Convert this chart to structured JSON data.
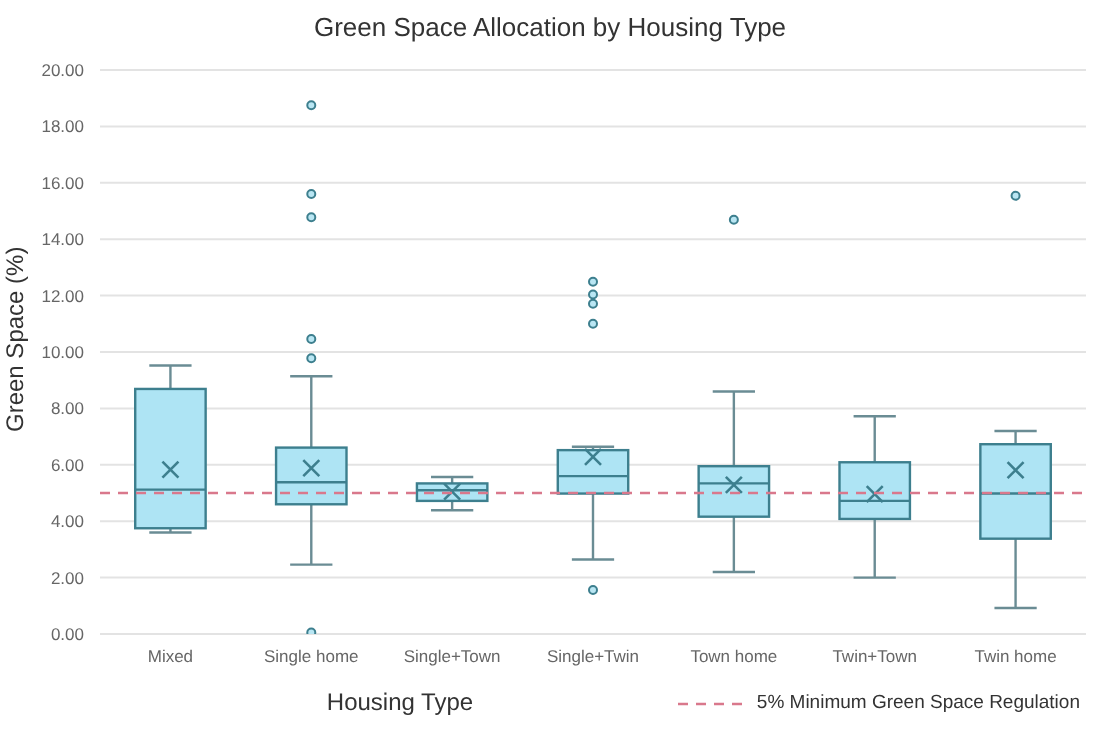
{
  "chart_data": {
    "type": "box",
    "title": "Green Space Allocation by Housing Type",
    "xlabel": "Housing Type",
    "ylabel": "Green Space (%)",
    "categories": [
      "Mixed",
      "Single home",
      "Single+Town",
      "Single+Twin",
      "Town home",
      "Twin+Town",
      "Twin home"
    ],
    "color": "#aee4f4",
    "boxes": [
      {
        "low": 3.6,
        "q1": 3.75,
        "median": 5.12,
        "q3": 8.69,
        "high": 9.52,
        "mean": 5.83
      },
      {
        "low": 2.46,
        "q1": 4.6,
        "median": 5.38,
        "q3": 6.61,
        "high": 9.14,
        "mean": 5.88,
        "outliers": [
          18.75,
          15.6,
          14.78,
          10.46,
          9.78,
          0.05
        ]
      },
      {
        "low": 4.39,
        "q1": 4.72,
        "median": 5.1,
        "q3": 5.34,
        "high": 5.57,
        "mean": 5.05
      },
      {
        "low": 2.64,
        "q1": 4.98,
        "median": 5.6,
        "q3": 6.52,
        "high": 6.64,
        "mean": 6.28,
        "outliers": [
          12.49,
          12.04,
          11.71,
          11.0,
          1.56
        ]
      },
      {
        "low": 2.2,
        "q1": 4.16,
        "median": 5.34,
        "q3": 5.95,
        "high": 8.6,
        "mean": 5.29,
        "outliers": [
          14.69
        ]
      },
      {
        "low": 2.0,
        "q1": 4.08,
        "median": 4.72,
        "q3": 6.09,
        "high": 7.72,
        "mean": 4.96
      },
      {
        "low": 0.92,
        "q1": 3.38,
        "median": 4.98,
        "q3": 6.73,
        "high": 7.2,
        "mean": 5.81,
        "outliers": [
          15.54
        ]
      }
    ],
    "ylim": [
      0,
      20
    ],
    "yticks": [
      {
        "value": 0,
        "label": "0.00"
      },
      {
        "value": 2,
        "label": "2.00"
      },
      {
        "value": 4,
        "label": "4.00"
      },
      {
        "value": 6,
        "label": "6.00"
      },
      {
        "value": 8,
        "label": "8.00"
      },
      {
        "value": 10,
        "label": "10.00"
      },
      {
        "value": 12,
        "label": "12.00"
      },
      {
        "value": 14,
        "label": "14.00"
      },
      {
        "value": 16,
        "label": "16.00"
      },
      {
        "value": 18,
        "label": "18.00"
      },
      {
        "value": 20,
        "label": "20.00"
      }
    ],
    "grid": "y",
    "legend": "bottom right",
    "ref_lines": [
      {
        "axis": "y",
        "value": 5,
        "label": "5% Minimum Green Space Regulation",
        "color": "#d9788c",
        "line_style": "dashed"
      }
    ]
  }
}
